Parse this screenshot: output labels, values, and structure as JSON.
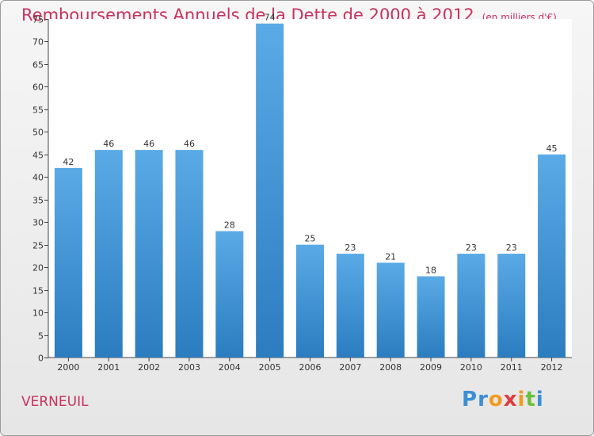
{
  "chart_data": {
    "type": "bar",
    "title": "Remboursements Annuels de la Dette de 2000 à 2012",
    "unit_note": "(en milliers d'€)",
    "categories": [
      "2000",
      "2001",
      "2002",
      "2003",
      "2004",
      "2005",
      "2006",
      "2007",
      "2008",
      "2009",
      "2010",
      "2011",
      "2012"
    ],
    "values": [
      42,
      46,
      46,
      46,
      28,
      74,
      25,
      23,
      21,
      18,
      23,
      23,
      45
    ],
    "ylim": [
      0,
      75
    ],
    "yticks": [
      0,
      5,
      10,
      15,
      20,
      25,
      30,
      35,
      40,
      45,
      50,
      55,
      60,
      65,
      70,
      75
    ],
    "grid": false,
    "bar_color_top": "#5aaae6",
    "bar_color_bottom": "#2b7dc0"
  },
  "commune": "VERNEUIL",
  "brand": {
    "letters": [
      "P",
      "r",
      "o",
      "x",
      "i",
      "t",
      "i"
    ],
    "colors": [
      "#3a8fd6",
      "#3a8fd6",
      "#f39a1e",
      "#e23b3b",
      "#f39a1e",
      "#6cbf3a",
      "#3a8fd6"
    ]
  }
}
